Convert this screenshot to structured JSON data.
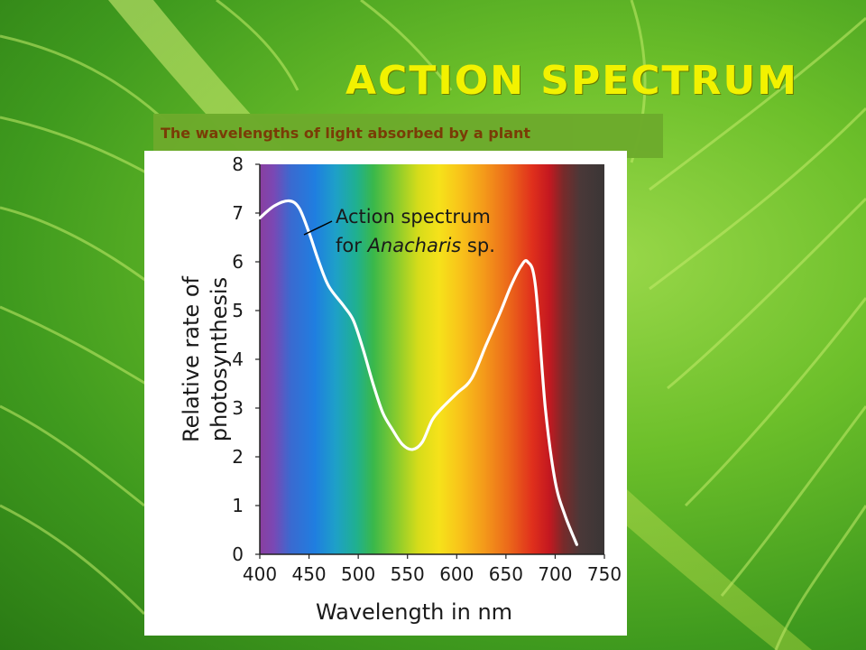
{
  "slide": {
    "title": "Action Spectrum",
    "subtitle": "The wavelengths of light absorbed by a plant"
  },
  "chart_data": {
    "type": "line",
    "xlabel": "Wavelength in nm",
    "ylabel": "Relative rate of photosynthesis",
    "xlim": [
      400,
      750
    ],
    "ylim": [
      0,
      8
    ],
    "x_ticks": [
      400,
      450,
      500,
      550,
      600,
      650,
      700,
      750
    ],
    "y_ticks": [
      0,
      1,
      2,
      3,
      4,
      5,
      6,
      7,
      8
    ],
    "grid": false,
    "background": "visible light spectrum gradient (violet to red, dark beyond ~720 nm)",
    "annotation": {
      "line1": "Action spectrum",
      "line2_prefix": "for ",
      "line2_italic": "Anacharis",
      "line2_suffix": " sp."
    },
    "series": [
      {
        "color": "#ffffff",
        "points": [
          [
            400,
            6.9
          ],
          [
            415,
            7.15
          ],
          [
            430,
            7.25
          ],
          [
            440,
            7.1
          ],
          [
            450,
            6.6
          ],
          [
            460,
            6.0
          ],
          [
            470,
            5.5
          ],
          [
            485,
            5.1
          ],
          [
            495,
            4.8
          ],
          [
            505,
            4.2
          ],
          [
            515,
            3.5
          ],
          [
            525,
            2.9
          ],
          [
            535,
            2.55
          ],
          [
            545,
            2.25
          ],
          [
            555,
            2.15
          ],
          [
            565,
            2.3
          ],
          [
            575,
            2.75
          ],
          [
            585,
            3.0
          ],
          [
            600,
            3.3
          ],
          [
            615,
            3.6
          ],
          [
            630,
            4.3
          ],
          [
            645,
            5.0
          ],
          [
            655,
            5.5
          ],
          [
            665,
            5.9
          ],
          [
            672,
            6.0
          ],
          [
            680,
            5.5
          ],
          [
            690,
            3.0
          ],
          [
            700,
            1.5
          ],
          [
            710,
            0.8
          ],
          [
            722,
            0.2
          ]
        ]
      }
    ]
  }
}
